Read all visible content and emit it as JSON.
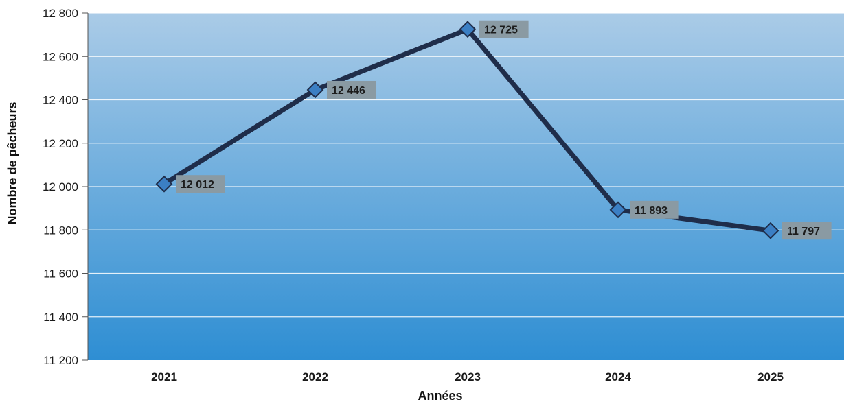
{
  "chart_data": {
    "type": "line",
    "title": "",
    "xlabel": "Années",
    "ylabel": "Nombre de pêcheurs",
    "categories": [
      "2021",
      "2022",
      "2023",
      "2024",
      "2025"
    ],
    "values": [
      12012,
      12446,
      12725,
      11893,
      11797
    ],
    "data_labels": [
      "12 012",
      "12 446",
      "12 725",
      "11 893",
      "11 797"
    ],
    "ylim": [
      11200,
      12800
    ],
    "yticks": [
      11200,
      11400,
      11600,
      11800,
      12000,
      12200,
      12400,
      12600,
      12800
    ],
    "ytick_labels": [
      "11 200",
      "11 400",
      "11 600",
      "11 800",
      "12 000",
      "12 200",
      "12 400",
      "12 600",
      "12 800"
    ],
    "grid": true,
    "legend": "none",
    "colors": {
      "line": "#1f2d4a",
      "marker": "#3b7fc4",
      "plot_bg_top": "#a9c9e6",
      "plot_bg_bottom": "#2f8fd3",
      "label_bg": "#8a9aa3",
      "grid": "#ffffff"
    }
  }
}
